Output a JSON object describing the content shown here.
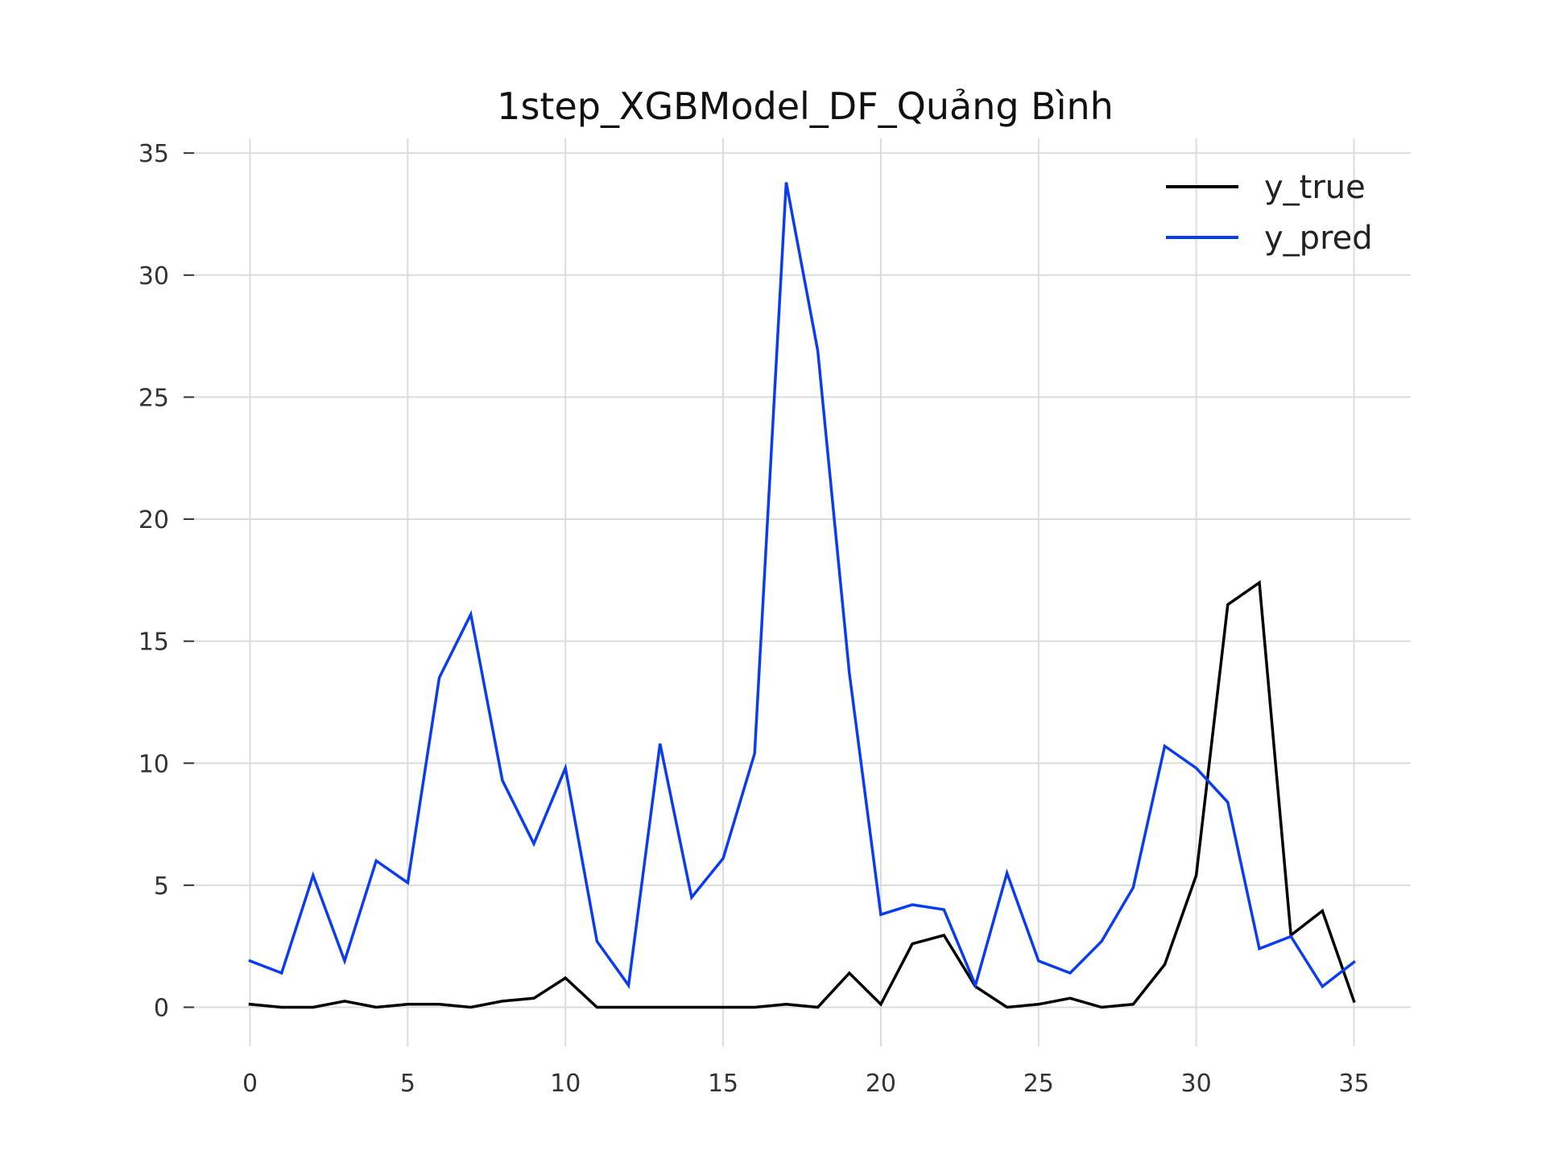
{
  "chart_data": {
    "type": "line",
    "title": "1step_XGBModel_DF_Quảng Bình",
    "xlabel": "",
    "ylabel": "",
    "xlim": [
      -1.8,
      36.8
    ],
    "ylim": [
      -1.6,
      35.6
    ],
    "x_ticks": [
      0,
      5,
      10,
      15,
      20,
      25,
      30,
      35
    ],
    "y_ticks": [
      0,
      5,
      10,
      15,
      20,
      25,
      30,
      35
    ],
    "grid": true,
    "legend_position": "top-right",
    "x": [
      0,
      1,
      2,
      3,
      4,
      5,
      6,
      7,
      8,
      9,
      10,
      11,
      12,
      13,
      14,
      15,
      16,
      17,
      18,
      19,
      20,
      21,
      22,
      23,
      24,
      25,
      26,
      27,
      28,
      29,
      30,
      31,
      32,
      33,
      34,
      35
    ],
    "series": [
      {
        "name": "y_true",
        "color": "#000000",
        "values": [
          0.12,
          0.0,
          0.0,
          0.25,
          0.0,
          0.12,
          0.12,
          0.0,
          0.25,
          0.37,
          1.2,
          0.0,
          0.0,
          0.0,
          0.0,
          0.0,
          0.0,
          0.12,
          0.0,
          1.4,
          0.12,
          2.6,
          2.95,
          0.85,
          0.0,
          0.12,
          0.37,
          0.0,
          0.12,
          1.75,
          5.4,
          16.5,
          17.4,
          2.95,
          3.95,
          0.25
        ]
      },
      {
        "name": "y_pred",
        "color": "#0a3cf0",
        "values": [
          1.9,
          1.4,
          5.4,
          1.9,
          6.0,
          5.1,
          13.5,
          16.1,
          9.3,
          6.7,
          9.8,
          2.7,
          0.9,
          10.8,
          4.5,
          6.1,
          10.4,
          33.8,
          26.9,
          13.7,
          3.8,
          4.2,
          4.0,
          0.9,
          5.5,
          1.9,
          1.4,
          2.7,
          4.9,
          10.7,
          9.8,
          8.4,
          2.4,
          2.9,
          0.85,
          1.85
        ]
      }
    ]
  }
}
